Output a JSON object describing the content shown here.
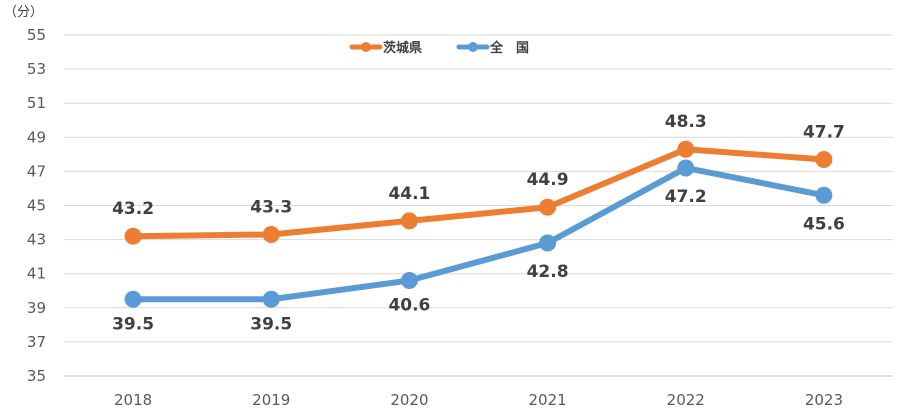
{
  "chart_data": {
    "type": "line",
    "title": "",
    "unit_label": "（分）",
    "xlabel": "",
    "ylabel": "",
    "categories": [
      "2018",
      "2019",
      "2020",
      "2021",
      "2022",
      "2023"
    ],
    "ylim": [
      35,
      55
    ],
    "yticks": [
      35,
      37,
      39,
      41,
      43,
      45,
      47,
      49,
      51,
      53,
      55
    ],
    "grid": true,
    "legend_position": "top-center",
    "series": [
      {
        "name": "茨城県",
        "color": "#ED7D31",
        "values": [
          43.2,
          43.3,
          44.1,
          44.9,
          48.3,
          47.7
        ],
        "labels": [
          "43.2",
          "43.3",
          "44.1",
          "44.9",
          "48.3",
          "47.7"
        ]
      },
      {
        "name": "全　国",
        "color": "#5B9BD5",
        "values": [
          39.5,
          39.5,
          40.6,
          42.8,
          47.2,
          45.6
        ],
        "labels": [
          "39.5",
          "39.5",
          "40.6",
          "42.8",
          "47.2",
          "45.6"
        ]
      }
    ]
  }
}
